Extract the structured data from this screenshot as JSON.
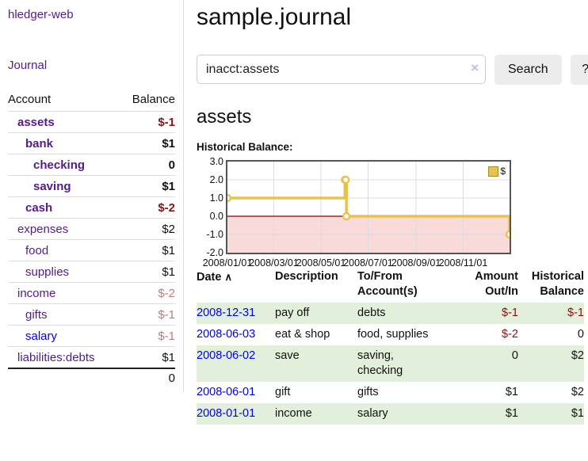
{
  "sidebar": {
    "brand": "hledger-web",
    "nav_journal": "Journal",
    "accounts": {
      "headers": [
        "Account",
        "Balance"
      ],
      "rows": [
        {
          "name": "assets",
          "depth": 1,
          "bold": true,
          "link": "purple",
          "balance": "$-1",
          "neg": "strong"
        },
        {
          "name": "bank",
          "depth": 2,
          "bold": true,
          "link": "purple",
          "balance": "$1",
          "neg": "none"
        },
        {
          "name": "checking",
          "depth": 3,
          "bold": true,
          "link": "purple",
          "balance": "0",
          "neg": "none"
        },
        {
          "name": "saving",
          "depth": 3,
          "bold": true,
          "link": "purple",
          "balance": "$1",
          "neg": "none"
        },
        {
          "name": "cash",
          "depth": 2,
          "bold": true,
          "link": "purple",
          "balance": "$-2",
          "neg": "strong"
        },
        {
          "name": "expenses",
          "depth": 1,
          "bold": false,
          "link": "purple",
          "balance": "$2",
          "neg": "none"
        },
        {
          "name": "food",
          "depth": 2,
          "bold": false,
          "link": "purple",
          "balance": "$1",
          "neg": "none"
        },
        {
          "name": "supplies",
          "depth": 2,
          "bold": false,
          "link": "purple",
          "balance": "$1",
          "neg": "none"
        },
        {
          "name": "income",
          "depth": 1,
          "bold": false,
          "link": "purple",
          "balance": "$-2",
          "neg": "muted"
        },
        {
          "name": "gifts",
          "depth": 2,
          "bold": false,
          "link": "purple",
          "balance": "$-1",
          "neg": "muted"
        },
        {
          "name": "salary",
          "depth": 2,
          "bold": false,
          "link": "blue",
          "balance": "$-1",
          "neg": "muted"
        },
        {
          "name": "liabilities:debts",
          "depth": 1,
          "bold": false,
          "link": "purple",
          "balance": "$1",
          "neg": "none"
        }
      ],
      "total": "0"
    }
  },
  "main": {
    "title": "sample.journal",
    "search": {
      "value": "inacct:assets",
      "clear_icon": "×",
      "button_label": "Search",
      "help_label": "?"
    },
    "account_heading": "assets",
    "chart_title": "Historical Balance:"
  },
  "chart_data": {
    "type": "line",
    "step": true,
    "title": "Historical Balance:",
    "series": [
      {
        "name": "$",
        "color": "#e9c24d",
        "points": [
          [
            "2008-01-01",
            1
          ],
          [
            "2008-06-01",
            2
          ],
          [
            "2008-06-02",
            2
          ],
          [
            "2008-06-03",
            0
          ],
          [
            "2008-12-31",
            -1
          ]
        ]
      }
    ],
    "x_range": [
      "2008-01-01",
      "2008-12-31"
    ],
    "x_tick_labels": [
      "2008/01/01",
      "2008/03/01",
      "2008/05/01",
      "2008/07/01",
      "2008/09/01",
      "2008/11/01"
    ],
    "y_ticks": [
      3.0,
      2.0,
      1.0,
      0.0,
      -1.0,
      -2.0
    ],
    "ylim": [
      -2,
      3
    ],
    "grid": true,
    "zero_line_color": "#8b0000",
    "negative_region_color": "#f9dada",
    "legend": {
      "label": "$",
      "position": "top-right"
    }
  },
  "transactions": {
    "sort": {
      "label": "Date",
      "icon": "∧"
    },
    "headers": [
      "Description",
      "To/From\nAccount(s)",
      "Amount\nOut/In",
      "Historical\nBalance"
    ],
    "rows": [
      {
        "date": "2008-12-31",
        "description": "pay off",
        "accounts": "debts",
        "amount": "$-1",
        "amount_neg": true,
        "balance": "$-1",
        "balance_neg": true,
        "green": true
      },
      {
        "date": "2008-06-03",
        "description": "eat & shop",
        "accounts": "food, supplies",
        "amount": "$-2",
        "amount_neg": true,
        "balance": "0",
        "balance_neg": false,
        "green": false
      },
      {
        "date": "2008-06-02",
        "description": "save",
        "accounts": "saving,\nchecking",
        "amount": "0",
        "amount_neg": false,
        "balance": "$2",
        "balance_neg": false,
        "green": true
      },
      {
        "date": "2008-06-01",
        "description": "gift",
        "accounts": "gifts",
        "amount": "$1",
        "amount_neg": false,
        "balance": "$2",
        "balance_neg": false,
        "green": false
      },
      {
        "date": "2008-01-01",
        "description": "income",
        "accounts": "salary",
        "amount": "$1",
        "amount_neg": false,
        "balance": "$1",
        "balance_neg": false,
        "green": true
      }
    ]
  }
}
